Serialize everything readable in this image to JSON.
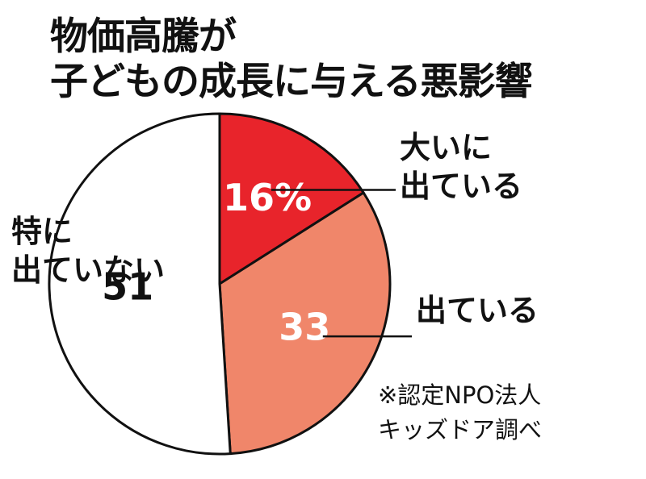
{
  "title_lines": [
    "物価高騰が",
    "子どもの成長に与える悪影響"
  ],
  "chart_data": {
    "type": "pie",
    "title": "物価高騰が子どもの成長に与える悪影響",
    "categories": [
      "大いに出ている",
      "出ている",
      "特に出ていない"
    ],
    "values": [
      16,
      33,
      51
    ],
    "value_labels": [
      "16%",
      "33",
      "51"
    ],
    "label_lines": [
      [
        "大いに",
        "出ている"
      ],
      [
        "出ている"
      ],
      [
        "特に",
        "出ていない"
      ]
    ],
    "colors": [
      "#e8242b",
      "#f0866a",
      "#ffffff"
    ],
    "value_label_colors": [
      "#ffffff",
      "#ffffff",
      "#111111"
    ],
    "unit": "%"
  },
  "source_note": [
    "※認定NPO法人",
    "キッズドア調べ"
  ]
}
